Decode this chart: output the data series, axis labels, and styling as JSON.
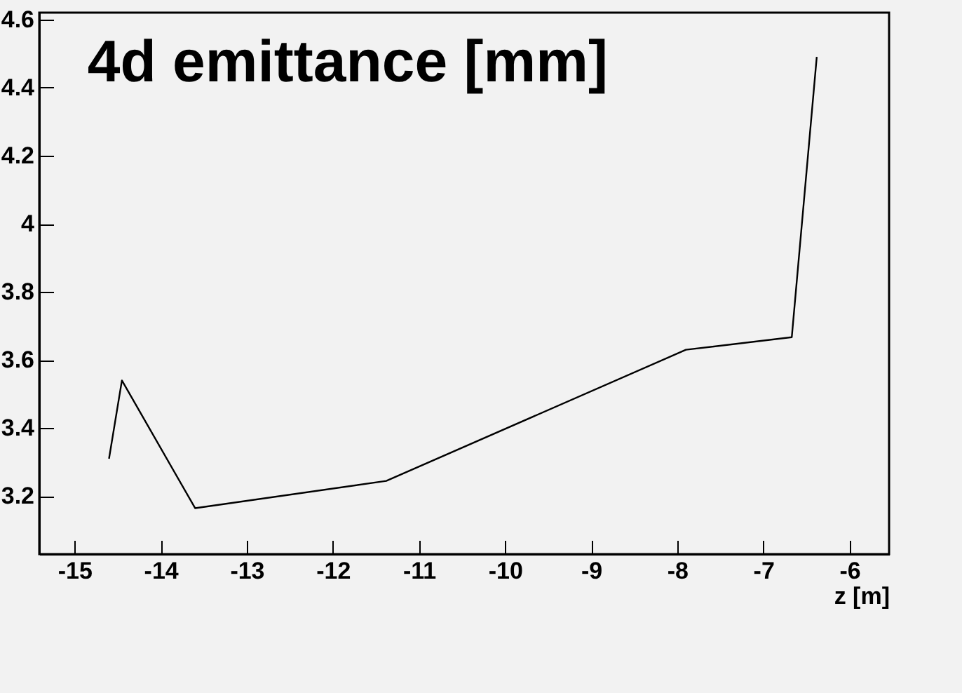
{
  "chart_data": {
    "type": "line",
    "title": "4d emittance [mm]",
    "xlabel": "z [m]",
    "x": [
      -14.6,
      -14.45,
      -13.6,
      -11.38,
      -7.9,
      -6.67,
      -6.38
    ],
    "series": [
      {
        "color": "#000000",
        "values": [
          3.31,
          3.54,
          3.165,
          3.245,
          3.63,
          3.667,
          4.49
        ]
      }
    ],
    "xlim": [
      -15.41,
      -5.54
    ],
    "ylim": [
      3.03,
      4.62
    ],
    "xticks": [
      -15,
      -14,
      -13,
      -12,
      -11,
      -10,
      -9,
      -8,
      -7,
      -6
    ],
    "yticks": [
      3.2,
      3.4,
      3.6,
      3.8,
      4,
      4.2,
      4.4,
      4.6
    ],
    "grid": false
  }
}
